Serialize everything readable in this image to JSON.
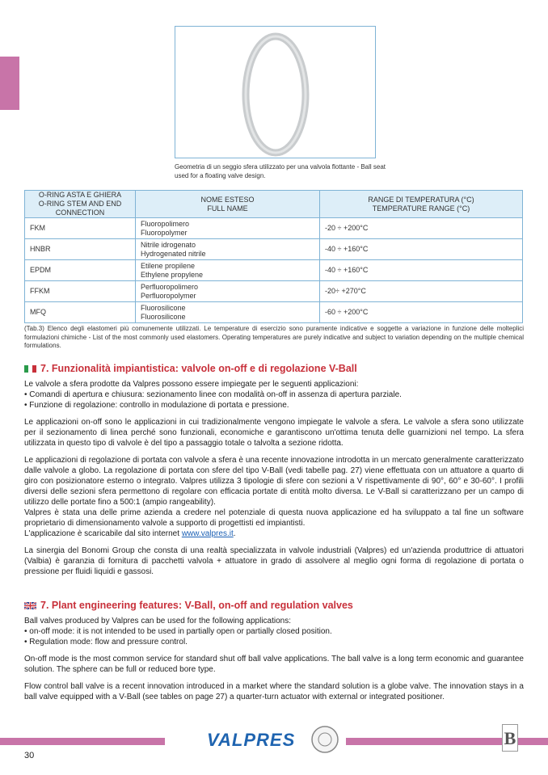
{
  "figure": {
    "caption": "Geometria di un seggio sfera utilizzato per una valvola flottante - Ball seat used for a floating valve design."
  },
  "table": {
    "headers": [
      [
        "O-RING ASTA E GHIERA",
        "O-RING STEM AND END CONNECTION"
      ],
      [
        "NOME ESTESO",
        "FULL NAME"
      ],
      [
        "RANGE DI TEMPERATURA (°C)",
        "TEMPERATURE RANGE (°C)"
      ]
    ],
    "rows": [
      {
        "code": "FKM",
        "name_it": "Fluoropolimero",
        "name_en": "Fluoropolymer",
        "range": "-20 ÷ +200°C"
      },
      {
        "code": "HNBR",
        "name_it": "Nitrile idrogenato",
        "name_en": "Hydrogenated nitrile",
        "range": "-40 ÷ +160°C"
      },
      {
        "code": "EPDM",
        "name_it": "Etilene propilene",
        "name_en": "Ethylene propylene",
        "range": "-40 ÷ +160°C"
      },
      {
        "code": "FFKM",
        "name_it": "Perfluoropolimero",
        "name_en": "Perfluoropolymer",
        "range": "-20÷ +270°C"
      },
      {
        "code": "MFQ",
        "name_it": "Fluorosilicone",
        "name_en": "Fluorosilicone",
        "range": "-60 ÷ +200°C"
      }
    ],
    "note": "(Tab.3) Elenco degli elastomeri più comunemente utilizzati. Le temperature di esercizio sono puramente indicative e soggette a variazione in funzione delle molteplici formulazioni chimiche - List of the most commonly used elastomers. Operating temperatures are purely indicative and subject to variation depending on the multiple chemical formulations."
  },
  "it": {
    "heading": "7. Funzionalità impiantistica: valvole on-off e di regolazione V-Ball",
    "p1": [
      "Le valvole a sfera prodotte da Valpres possono essere impiegate per le seguenti applicazioni:",
      "• Comandi di apertura e chiusura: sezionamento linee con modalità on-off in assenza di apertura parziale.",
      "• Funzione di regolazione: controllo in modulazione di portata e pressione."
    ],
    "p2": "Le applicazioni on-off sono le applicazioni in cui tradizionalmente vengono impiegate le valvole a sfera. Le valvole a sfera sono utilizzate per il sezionamento di linea perché sono funzionali, economiche e garantiscono un'ottima tenuta delle guarnizioni nel tempo. La sfera utilizzata in questo tipo di valvole è del tipo a passaggio totale o talvolta a sezione ridotta.",
    "p3": "Le applicazioni di regolazione di portata con valvole a sfera è una recente innovazione introdotta in un mercato generalmente caratterizzato dalle valvole a globo. La regolazione di portata con sfere del tipo V-Ball (vedi tabelle pag. 27) viene effettuata con un attuatore a quarto di giro con posizionatore esterno o integrato. Valpres utilizza 3 tipologie di sfere con sezioni a V rispettivamente di 90°, 60° e 30-60°. I profili diversi delle sezioni sfera permettono di regolare con efficacia portate di entità molto diversa. Le V-Ball si caratterizzano per un campo di utilizzo delle portate fino a 500:1 (ampio rangeability).",
    "p3b": "Valpres è stata una delle prime azienda a credere nel potenziale di questa nuova applicazione ed ha sviluppato a tal fine un software proprietario di dimensionamento valvole a supporto di progettisti ed impiantisti.",
    "p3c": "L'applicazione è scaricabile dal sito internet ",
    "link": "www.valpres.it",
    "p4": "La sinergia del Bonomi Group che consta di una realtà specializzata in valvole industriali (Valpres) ed un'azienda produttrice di attuatori (Valbia) è garanzia di fornitura di pacchetti valvola + attuatore in grado di assolvere al meglio ogni forma di regolazione di portata o pressione per fluidi liquidi e gassosi."
  },
  "en": {
    "heading": "7. Plant engineering features: V-Ball, on-off and regulation valves",
    "p1": [
      "Ball valves produced by Valpres can be used for the following applications:",
      "• on-off mode: it is not intended to be used in partially open or partially closed position.",
      "• Regulation mode: flow and pressure control."
    ],
    "p2": "On-off mode is the most common service for standard shut off ball valve applications. The ball valve is a long term economic and guarantee solution. The sphere can be full or reduced bore type.",
    "p3": "Flow control ball valve is a recent innovation introduced in a market where the standard solution is a globe valve. The innovation stays in a ball valve equipped with a V-Ball (see tables on page 27) a quarter-turn actuator with external or integrated positioner."
  },
  "footer": {
    "brand": "VALPRES",
    "page": "30",
    "group_logo": "BONOMI B GROUP",
    "accent": "#c874a8"
  }
}
